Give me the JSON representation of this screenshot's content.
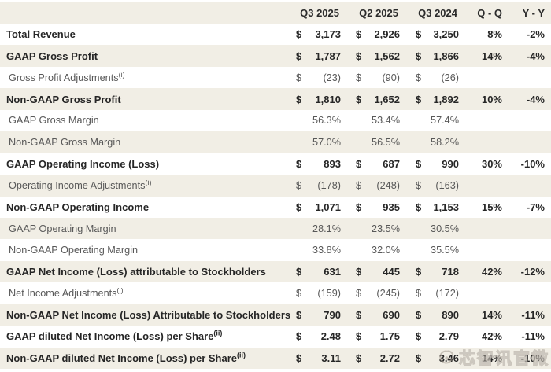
{
  "colors": {
    "stripe": "#f1eee5",
    "text_dark": "#262626",
    "text_gray": "#585858"
  },
  "table": {
    "currency_symbol": "$",
    "columns": [
      "Q3 2025",
      "Q2 2025",
      "Q3 2024",
      "Q - Q",
      "Y - Y"
    ],
    "rows": [
      {
        "label": "Total Revenue",
        "sup": "",
        "bold": true,
        "currency": true,
        "values": [
          "3,173",
          "2,926",
          "3,250"
        ],
        "qq": "8%",
        "yy": "-2%"
      },
      {
        "label": "GAAP Gross Profit",
        "sup": "",
        "bold": true,
        "currency": true,
        "values": [
          "1,787",
          "1,562",
          "1,866"
        ],
        "qq": "14%",
        "yy": "-4%"
      },
      {
        "label": "Gross Profit Adjustments",
        "sup": "(i)",
        "bold": false,
        "currency": true,
        "values": [
          "(23)",
          "(90)",
          "(26)"
        ],
        "qq": "",
        "yy": ""
      },
      {
        "label": "Non-GAAP Gross Profit",
        "sup": "",
        "bold": true,
        "currency": true,
        "values": [
          "1,810",
          "1,652",
          "1,892"
        ],
        "qq": "10%",
        "yy": "-4%"
      },
      {
        "label": "GAAP Gross Margin",
        "sup": "",
        "bold": false,
        "currency": false,
        "values": [
          "56.3%",
          "53.4%",
          "57.4%"
        ],
        "qq": "",
        "yy": ""
      },
      {
        "label": "Non-GAAP Gross Margin",
        "sup": "",
        "bold": false,
        "currency": false,
        "values": [
          "57.0%",
          "56.5%",
          "58.2%"
        ],
        "qq": "",
        "yy": ""
      },
      {
        "label": "GAAP Operating Income (Loss)",
        "sup": "",
        "bold": true,
        "currency": true,
        "values": [
          "893",
          "687",
          "990"
        ],
        "qq": "30%",
        "yy": "-10%"
      },
      {
        "label": "Operating Income Adjustments",
        "sup": "(i)",
        "bold": false,
        "currency": true,
        "values": [
          "(178)",
          "(248)",
          "(163)"
        ],
        "qq": "",
        "yy": ""
      },
      {
        "label": "Non-GAAP Operating Income",
        "sup": "",
        "bold": true,
        "currency": true,
        "values": [
          "1,071",
          "935",
          "1,153"
        ],
        "qq": "15%",
        "yy": "-7%"
      },
      {
        "label": "GAAP Operating Margin",
        "sup": "",
        "bold": false,
        "currency": false,
        "values": [
          "28.1%",
          "23.5%",
          "30.5%"
        ],
        "qq": "",
        "yy": ""
      },
      {
        "label": "Non-GAAP Operating Margin",
        "sup": "",
        "bold": false,
        "currency": false,
        "values": [
          "33.8%",
          "32.0%",
          "35.5%"
        ],
        "qq": "",
        "yy": ""
      },
      {
        "label": "GAAP Net Income (Loss) attributable to Stockholders",
        "sup": "",
        "bold": true,
        "currency": true,
        "values": [
          "631",
          "445",
          "718"
        ],
        "qq": "42%",
        "yy": "-12%"
      },
      {
        "label": "Net Income Adjustments",
        "sup": "(i)",
        "bold": false,
        "currency": true,
        "values": [
          "(159)",
          "(245)",
          "(172)"
        ],
        "qq": "",
        "yy": ""
      },
      {
        "label": "Non-GAAP Net Income (Loss) Attributable to Stockholders",
        "sup": "",
        "bold": true,
        "currency": true,
        "values": [
          "790",
          "690",
          "890"
        ],
        "qq": "14%",
        "yy": "-11%"
      },
      {
        "label": "GAAP diluted Net Income (Loss) per Share",
        "sup": "(ii)",
        "bold": true,
        "currency": true,
        "values": [
          "2.48",
          "1.75",
          "2.79"
        ],
        "qq": "42%",
        "yy": "-11%"
      },
      {
        "label": "Non-GAAP diluted Net Income (Loss) per Share",
        "sup": "(ii)",
        "bold": true,
        "currency": true,
        "values": [
          "3.11",
          "2.72",
          "3.46"
        ],
        "qq": "14%",
        "yy": "-10%"
      }
    ]
  },
  "watermark": {
    "text": "芯智讯官微",
    "icon": "weibo-logo-icon"
  }
}
